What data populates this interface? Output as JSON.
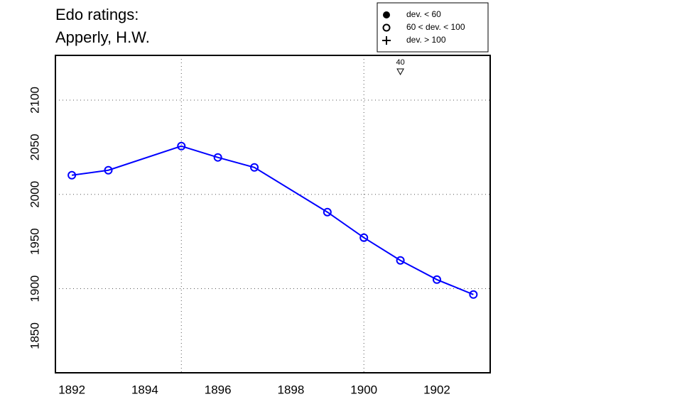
{
  "chart_data": {
    "type": "line",
    "title": "Edo ratings:",
    "subtitle": "Apperly, H.W.",
    "series": [
      {
        "name": "Apperly, H.W.",
        "color": "#0000ff",
        "marker": "open",
        "x": [
          1892,
          1893,
          1895,
          1896,
          1897,
          1899,
          1900,
          1901,
          1902,
          1903
        ],
        "values": [
          2020.3,
          2025.6,
          2051.2,
          2039.2,
          2028.6,
          1981.2,
          1954.1,
          1930,
          1909.6,
          1893.8
        ]
      }
    ],
    "xlim": [
      1891.55,
      1903.46
    ],
    "ylim": [
      1810.8,
      2147.4
    ],
    "xticks": [
      1892,
      1894,
      1896,
      1898,
      1900,
      1902
    ],
    "yticks": [
      1850,
      1900,
      1950,
      2000,
      2050,
      2100
    ],
    "grid_x": [
      1895,
      1900
    ],
    "grid_y": [
      1900,
      2000,
      2100
    ],
    "annotations": [
      {
        "x": 1901,
        "label": "40"
      }
    ],
    "legend": [
      {
        "label": "dev. < 60",
        "marker": "filled"
      },
      {
        "label": "60 < dev. < 100",
        "marker": "open"
      },
      {
        "label": "dev. > 100",
        "marker": "plus"
      }
    ],
    "legend_position": "top-right"
  }
}
